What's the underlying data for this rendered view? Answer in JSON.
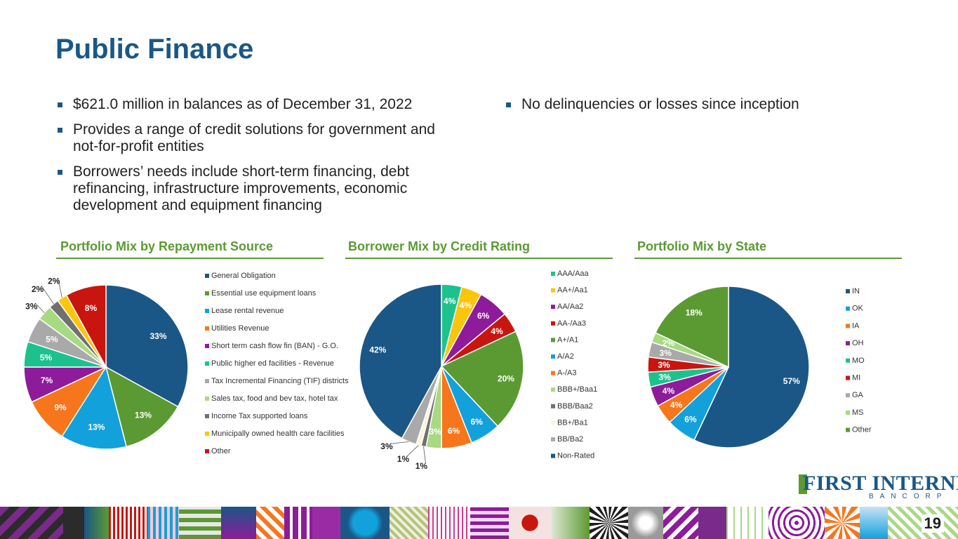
{
  "title": "Public Finance",
  "bullets_left": [
    "$621.0 million in balances as of December 31, 2022",
    "Provides a range of credit solutions for government and not-for-profit entities",
    "Borrowers’ needs include short-term financing, debt refinancing, infrastructure improvements, economic development and equipment financing"
  ],
  "bullets_right": [
    "No delinquencies or losses since inception"
  ],
  "section_titles": {
    "repayment": "Portfolio Mix by Repayment Source",
    "credit": "Borrower Mix by Credit Rating",
    "state": "Portfolio Mix by State"
  },
  "colors": {
    "title": "#1a5787",
    "accent_green": "#5b9a32"
  },
  "chart_data": [
    {
      "type": "pie",
      "title": "Portfolio Mix by Repayment Source",
      "legend_position": "right",
      "categories": [
        "General Obligation",
        "Essential use equipment loans",
        "Lease rental revenue",
        "Utilities Revenue",
        "Short term cash flow fin (BAN) - G.O.",
        "Public higher ed facilities - Revenue",
        "Tax Incremental Financing (TIF) districts",
        "Sales tax, food and bev tax, hotel tax",
        "Income Tax  supported loans",
        "Municipally owned health care facilities",
        "Other"
      ],
      "values": [
        33,
        13,
        13,
        9,
        7,
        5,
        5,
        3,
        2,
        2,
        8
      ],
      "labels": [
        "33%",
        "13%",
        "13%",
        "9%",
        "7%",
        "5%",
        "5%",
        "3%",
        "2%",
        "2%",
        "8%"
      ],
      "colors": [
        "#1a5787",
        "#5b9a32",
        "#13a1dc",
        "#f7761c",
        "#8e1b9a",
        "#1cc28e",
        "#a9a9a9",
        "#a8d983",
        "#707070",
        "#fbc50c",
        "#c8160f"
      ]
    },
    {
      "type": "pie",
      "title": "Borrower Mix by Credit Rating",
      "legend_position": "right",
      "categories": [
        "AAA/Aaa",
        "AA+/Aa1",
        "AA/Aa2",
        "AA-/Aa3",
        "A+/A1",
        "A/A2",
        "A-/A3",
        "BBB+/Baa1",
        "BBB/Baa2",
        "BB+/Ba1",
        "BB/Ba2",
        "Non-Rated"
      ],
      "values": [
        4,
        4,
        6,
        4,
        20,
        6,
        6,
        3,
        1,
        1,
        3,
        42
      ],
      "labels": [
        "4%",
        "4%",
        "6%",
        "4%",
        "20%",
        "6%",
        "6%",
        "3%",
        "1%",
        "1%",
        "3%",
        "42%"
      ],
      "colors": [
        "#1cc28e",
        "#fbc50c",
        "#8e1b9a",
        "#c8160f",
        "#5b9a32",
        "#13a1dc",
        "#f7761c",
        "#a8d983",
        "#707070",
        "#fdf3dc",
        "#a9a9a9",
        "#1a5787"
      ]
    },
    {
      "type": "pie",
      "title": "Portfolio Mix by State",
      "legend_position": "right",
      "categories": [
        "IN",
        "OK",
        "IA",
        "OH",
        "MO",
        "MI",
        "GA",
        "MS",
        "Other"
      ],
      "values": [
        57,
        6,
        4,
        4,
        3,
        3,
        3,
        2,
        18
      ],
      "labels": [
        "57%",
        "6%",
        "4%",
        "4%",
        "3%",
        "3%",
        "3%",
        "2%",
        "18%"
      ],
      "colors": [
        "#1a5787",
        "#13a1dc",
        "#f7761c",
        "#8e1b9a",
        "#1cc28e",
        "#c8160f",
        "#a9a9a9",
        "#a8d983",
        "#5b9a32"
      ]
    }
  ],
  "logo": {
    "name": "FIRST INTERNET",
    "sub": "BANCORP"
  },
  "page_number": "19"
}
